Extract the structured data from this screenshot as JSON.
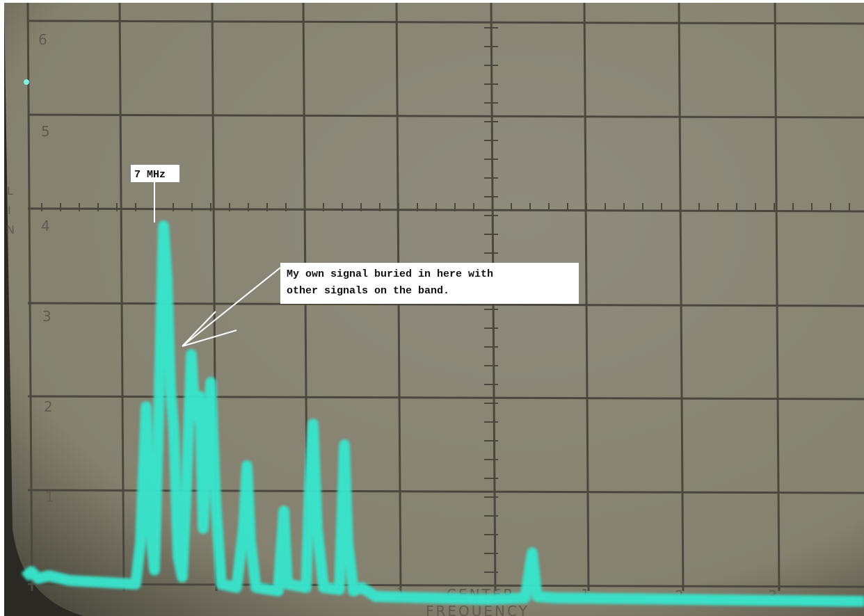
{
  "screen": {
    "graticule_labels": [
      "6",
      "5",
      "4",
      "3",
      "2",
      "1"
    ],
    "side_label": [
      "L",
      "I",
      "N"
    ],
    "bottom_labels": [
      "1",
      "CENTER",
      "FREQUENCY",
      "1",
      "2",
      "3"
    ]
  },
  "annotations": {
    "peak_label": "7 MHz",
    "note": [
      "My own signal buried in here with",
      "other signals on the band."
    ]
  }
}
